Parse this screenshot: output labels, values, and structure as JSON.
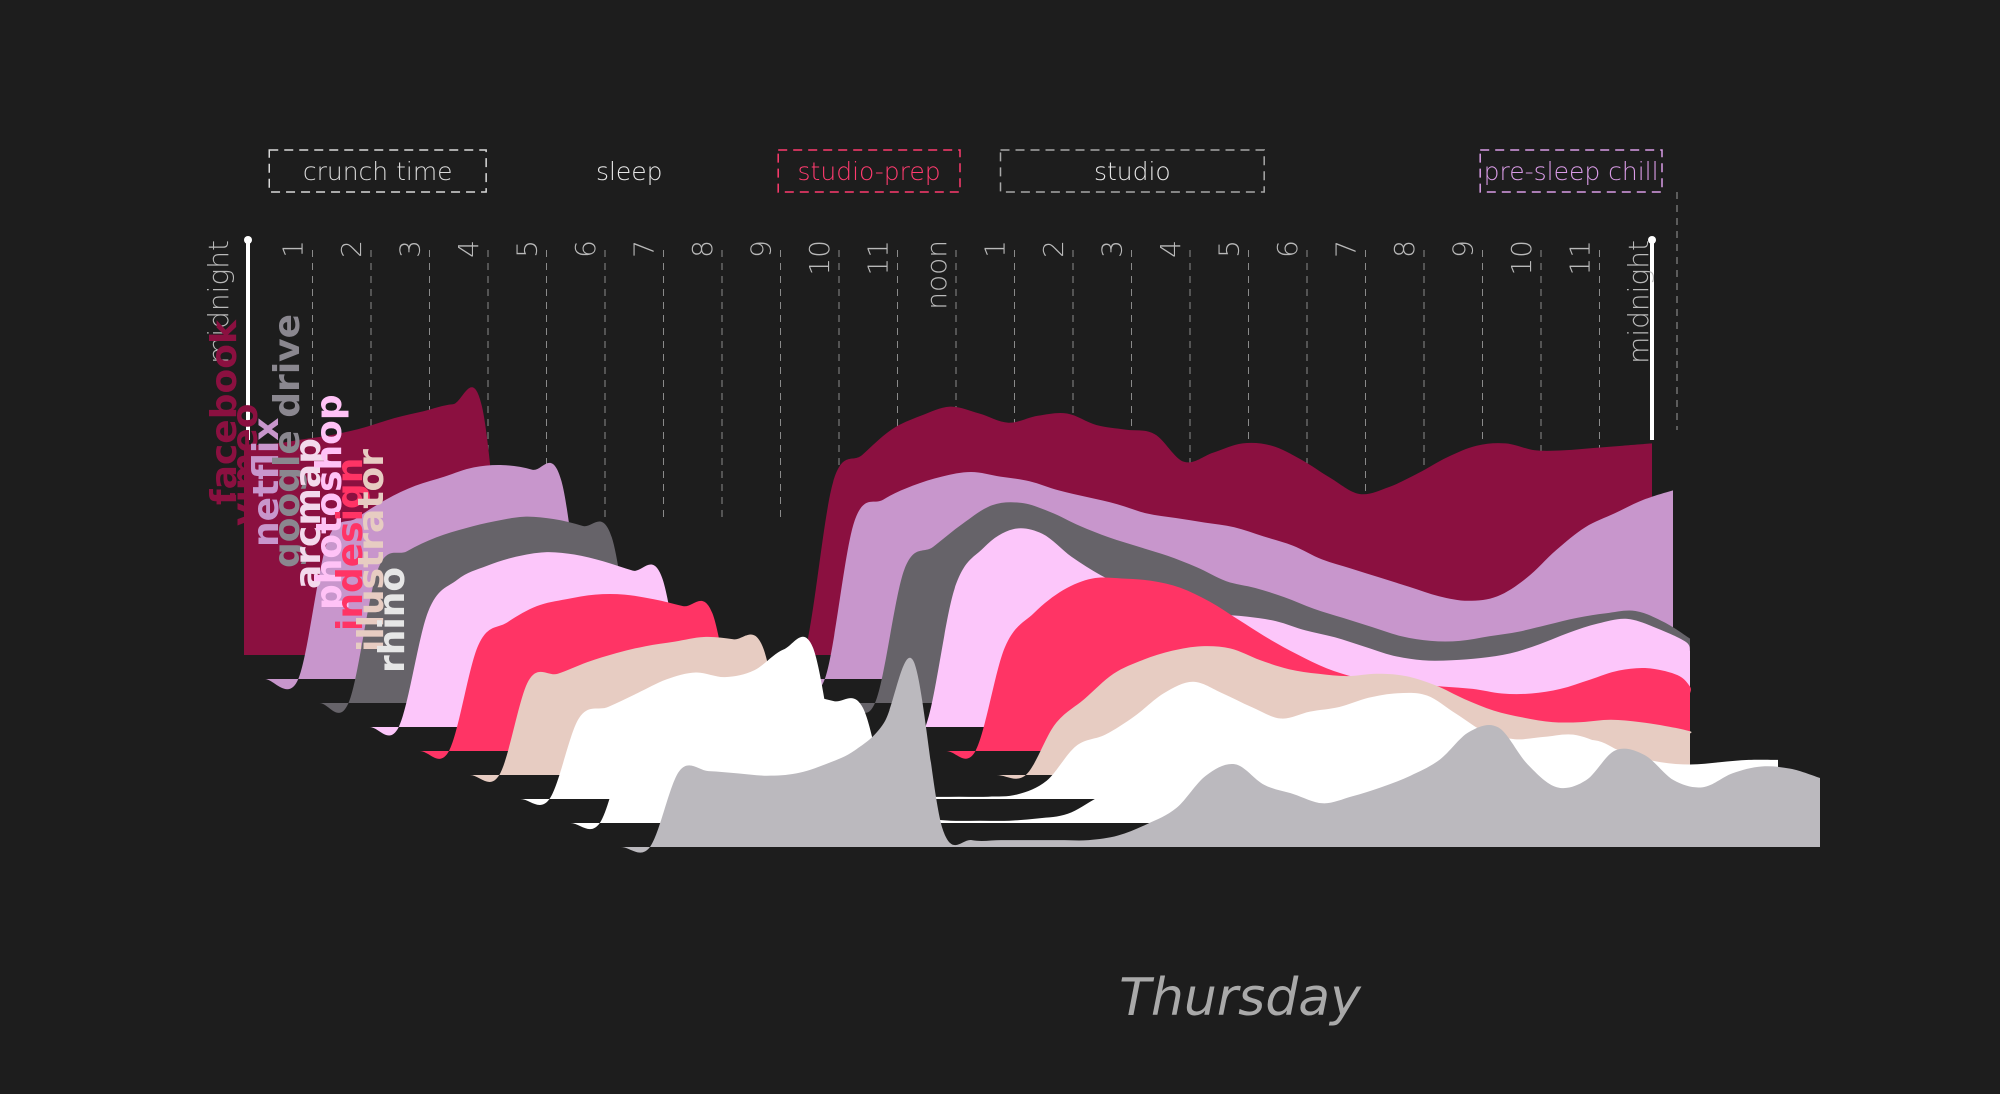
{
  "chart_data": {
    "type": "area",
    "title": "",
    "day_label": "Thursday",
    "x": [
      0,
      0.5,
      1,
      1.5,
      2,
      2.5,
      3,
      3.5,
      4,
      4.5,
      5,
      5.5,
      6,
      6.5,
      7,
      7.5,
      8,
      8.5,
      9,
      9.5,
      10,
      10.5,
      11,
      11.5,
      12,
      12.5,
      13,
      13.5,
      14,
      14.5,
      15,
      15.5,
      16,
      16.5,
      17,
      17.5,
      18,
      18.5,
      19,
      19.5,
      20,
      20.5,
      21,
      21.5,
      22,
      22.5,
      23,
      23.5,
      24
    ],
    "x_tick_labels": [
      "midnight",
      "1",
      "2",
      "3",
      "4",
      "5",
      "6",
      "7",
      "8",
      "9",
      "10",
      "11",
      "noon",
      "1",
      "2",
      "3",
      "4",
      "5",
      "6",
      "7",
      "8",
      "9",
      "10",
      "11",
      "midnight"
    ],
    "periods": [
      {
        "label": "crunch time",
        "start": 0.5,
        "end": 3.9,
        "color": "#d9d9d9",
        "boxed": true
      },
      {
        "label": "sleep",
        "start": 5.0,
        "end": 8.0,
        "color": "#e6e6e6",
        "boxed": false
      },
      {
        "label": "studio-prep",
        "start": 9.2,
        "end": 12.0,
        "color": "#ff3b6f",
        "boxed": true
      },
      {
        "label": "studio",
        "start": 13.0,
        "end": 17.2,
        "color": "#e6e6e6",
        "boxed": true
      },
      {
        "label": "pre-sleep chill",
        "start": 21.2,
        "end": 24.0,
        "color": "#d99be6",
        "boxed": true
      }
    ],
    "series": [
      {
        "name": "facebook",
        "color": "#8b1040",
        "label_color": "#8b1040",
        "values": [
          9.1,
          9.2,
          9.4,
          9.6,
          9.9,
          10.3,
          10.6,
          10.9,
          10.8,
          0,
          0,
          0,
          0,
          0,
          0,
          0,
          0,
          0,
          0,
          0,
          7.5,
          8.7,
          9.8,
          10.4,
          10.8,
          10.5,
          10.1,
          10.4,
          10.5,
          10.0,
          9.8,
          9.6,
          8.4,
          8.8,
          9.2,
          9.1,
          8.5,
          7.7,
          7.0,
          7.3,
          7.9,
          8.6,
          9.1,
          9.2,
          8.9,
          8.9,
          9.0,
          9.1,
          9.2
        ]
      },
      {
        "name": "vimeo",
        "color": "#c896cc",
        "label_color": "#8b1040",
        "values": [
          0,
          0,
          6.0,
          7.0,
          7.8,
          8.4,
          8.8,
          9.2,
          9.3,
          9.1,
          8.6,
          0,
          0,
          0,
          0,
          0,
          0,
          0,
          0,
          0,
          6.8,
          7.8,
          8.4,
          8.8,
          9.0,
          8.8,
          8.6,
          8.2,
          7.9,
          7.6,
          7.2,
          7.0,
          6.8,
          6.6,
          6.2,
          5.8,
          5.2,
          4.8,
          4.4,
          4.0,
          3.6,
          3.4,
          3.6,
          4.4,
          5.6,
          6.6,
          7.2,
          7.8,
          8.2
        ]
      },
      {
        "name": "netflix",
        "color": "#666369",
        "label_color": "#c896cc",
        "values": [
          0,
          0,
          0,
          5.8,
          6.6,
          7.2,
          7.6,
          7.9,
          8.1,
          8.0,
          7.7,
          7.2,
          0,
          0,
          0,
          0,
          0,
          0,
          0,
          0,
          0,
          5.8,
          6.8,
          7.8,
          8.6,
          8.7,
          8.3,
          7.7,
          7.2,
          6.8,
          6.4,
          5.9,
          5.3,
          5.0,
          4.6,
          4.1,
          3.7,
          3.3,
          2.9,
          2.7,
          2.7,
          2.9,
          3.1,
          3.4,
          3.7,
          3.9,
          4.0,
          3.5,
          2.8
        ]
      },
      {
        "name": "google drive",
        "color": "#fcc6fa",
        "label_color": "#8a878f",
        "values": [
          0,
          0,
          0,
          0,
          5.0,
          6.4,
          7.0,
          7.4,
          7.6,
          7.5,
          7.2,
          6.8,
          6.5,
          0,
          0,
          0,
          0,
          0,
          0,
          0,
          0,
          0,
          6.0,
          7.8,
          8.6,
          8.4,
          7.4,
          6.6,
          6.0,
          5.5,
          5.1,
          4.9,
          4.8,
          4.6,
          4.2,
          3.9,
          3.5,
          3.1,
          2.9,
          2.9,
          3.0,
          3.2,
          3.6,
          4.1,
          4.5,
          4.7,
          4.3,
          3.7,
          3.3
        ]
      },
      {
        "name": "arcmap",
        "color": "#ff3465",
        "label_color": "#f3d9ec",
        "values": [
          0,
          0,
          0,
          0,
          0,
          4.6,
          5.6,
          6.3,
          6.6,
          6.8,
          6.8,
          6.6,
          6.3,
          6.0,
          0,
          0,
          0,
          0,
          0,
          0,
          0,
          0,
          0,
          4.5,
          6.0,
          7.0,
          7.5,
          7.5,
          7.4,
          7.1,
          6.5,
          5.7,
          4.9,
          4.2,
          3.6,
          3.2,
          3.0,
          2.9,
          2.8,
          2.7,
          2.5,
          2.5,
          2.7,
          3.1,
          3.5,
          3.6,
          3.3,
          2.8,
          2.5
        ]
      },
      {
        "name": "photoshop",
        "color": "#e7ccc2",
        "label_color": "#ffc2f6",
        "values": [
          0,
          0,
          0,
          0,
          0,
          0,
          4.1,
          4.4,
          4.9,
          5.3,
          5.6,
          5.8,
          6.0,
          5.9,
          5.6,
          0,
          0,
          0,
          0,
          0,
          0,
          0,
          0,
          0,
          2.2,
          3.3,
          4.4,
          5.0,
          5.4,
          5.6,
          5.5,
          5.0,
          4.6,
          4.4,
          4.3,
          4.4,
          4.3,
          3.9,
          3.3,
          2.8,
          2.5,
          2.3,
          2.3,
          2.4,
          2.3,
          2.1,
          1.9,
          1.8,
          1.8
        ]
      },
      {
        "name": "indesign",
        "color": "#ffffff",
        "label_color": "#ff3465",
        "values": [
          0,
          0,
          0,
          0,
          0,
          0,
          0,
          3.5,
          4.0,
          4.6,
          5.2,
          5.5,
          5.3,
          5.6,
          6.5,
          6.6,
          0.5,
          0.3,
          0.2,
          0.1,
          0.1,
          0.1,
          0.2,
          0.8,
          2.3,
          2.8,
          3.6,
          4.6,
          5.1,
          4.6,
          4.0,
          3.5,
          3.8,
          4.0,
          4.4,
          4.6,
          4.5,
          3.7,
          2.9,
          2.6,
          2.7,
          2.8,
          2.4,
          1.9,
          1.6,
          1.5,
          1.6,
          1.7,
          1.7
        ]
      },
      {
        "name": "illustrator",
        "color": "#ffffff",
        "label_color": "#e7ccc2",
        "values": [
          0,
          0,
          0,
          0,
          0,
          0,
          0,
          0,
          3.6,
          3.9,
          4.4,
          5.1,
          5.6,
          5.8,
          5.6,
          5.3,
          5.0,
          0.4,
          0.2,
          0.1,
          0.1,
          0.1,
          0.2,
          0.4,
          1.1,
          1.8,
          2.1,
          2.0,
          2.1,
          2.5,
          2.6,
          2.3,
          2.4,
          2.5,
          3.1,
          3.4,
          3.5,
          2.8,
          2.4,
          2.8,
          3.2,
          3.6,
          3.0,
          2.1,
          1.6,
          1.4,
          1.6,
          1.7,
          1.7
        ]
      },
      {
        "name": "rhino",
        "color": "#bbb9be",
        "label_color": "#e6e6e6",
        "values": [
          0,
          0,
          0,
          0,
          0,
          0,
          0,
          0,
          0,
          3.3,
          3.3,
          3.2,
          3.1,
          3.2,
          3.6,
          4.2,
          5.4,
          8.1,
          0.8,
          0.3,
          0.3,
          0.3,
          0.3,
          0.3,
          0.5,
          1.0,
          1.7,
          3.1,
          3.6,
          2.7,
          2.3,
          1.9,
          2.2,
          2.6,
          3.1,
          3.8,
          5.0,
          5.2,
          3.6,
          2.6,
          2.9,
          4.2,
          4.0,
          2.9,
          2.6,
          3.2,
          3.5,
          3.4,
          3.0
        ]
      }
    ]
  }
}
